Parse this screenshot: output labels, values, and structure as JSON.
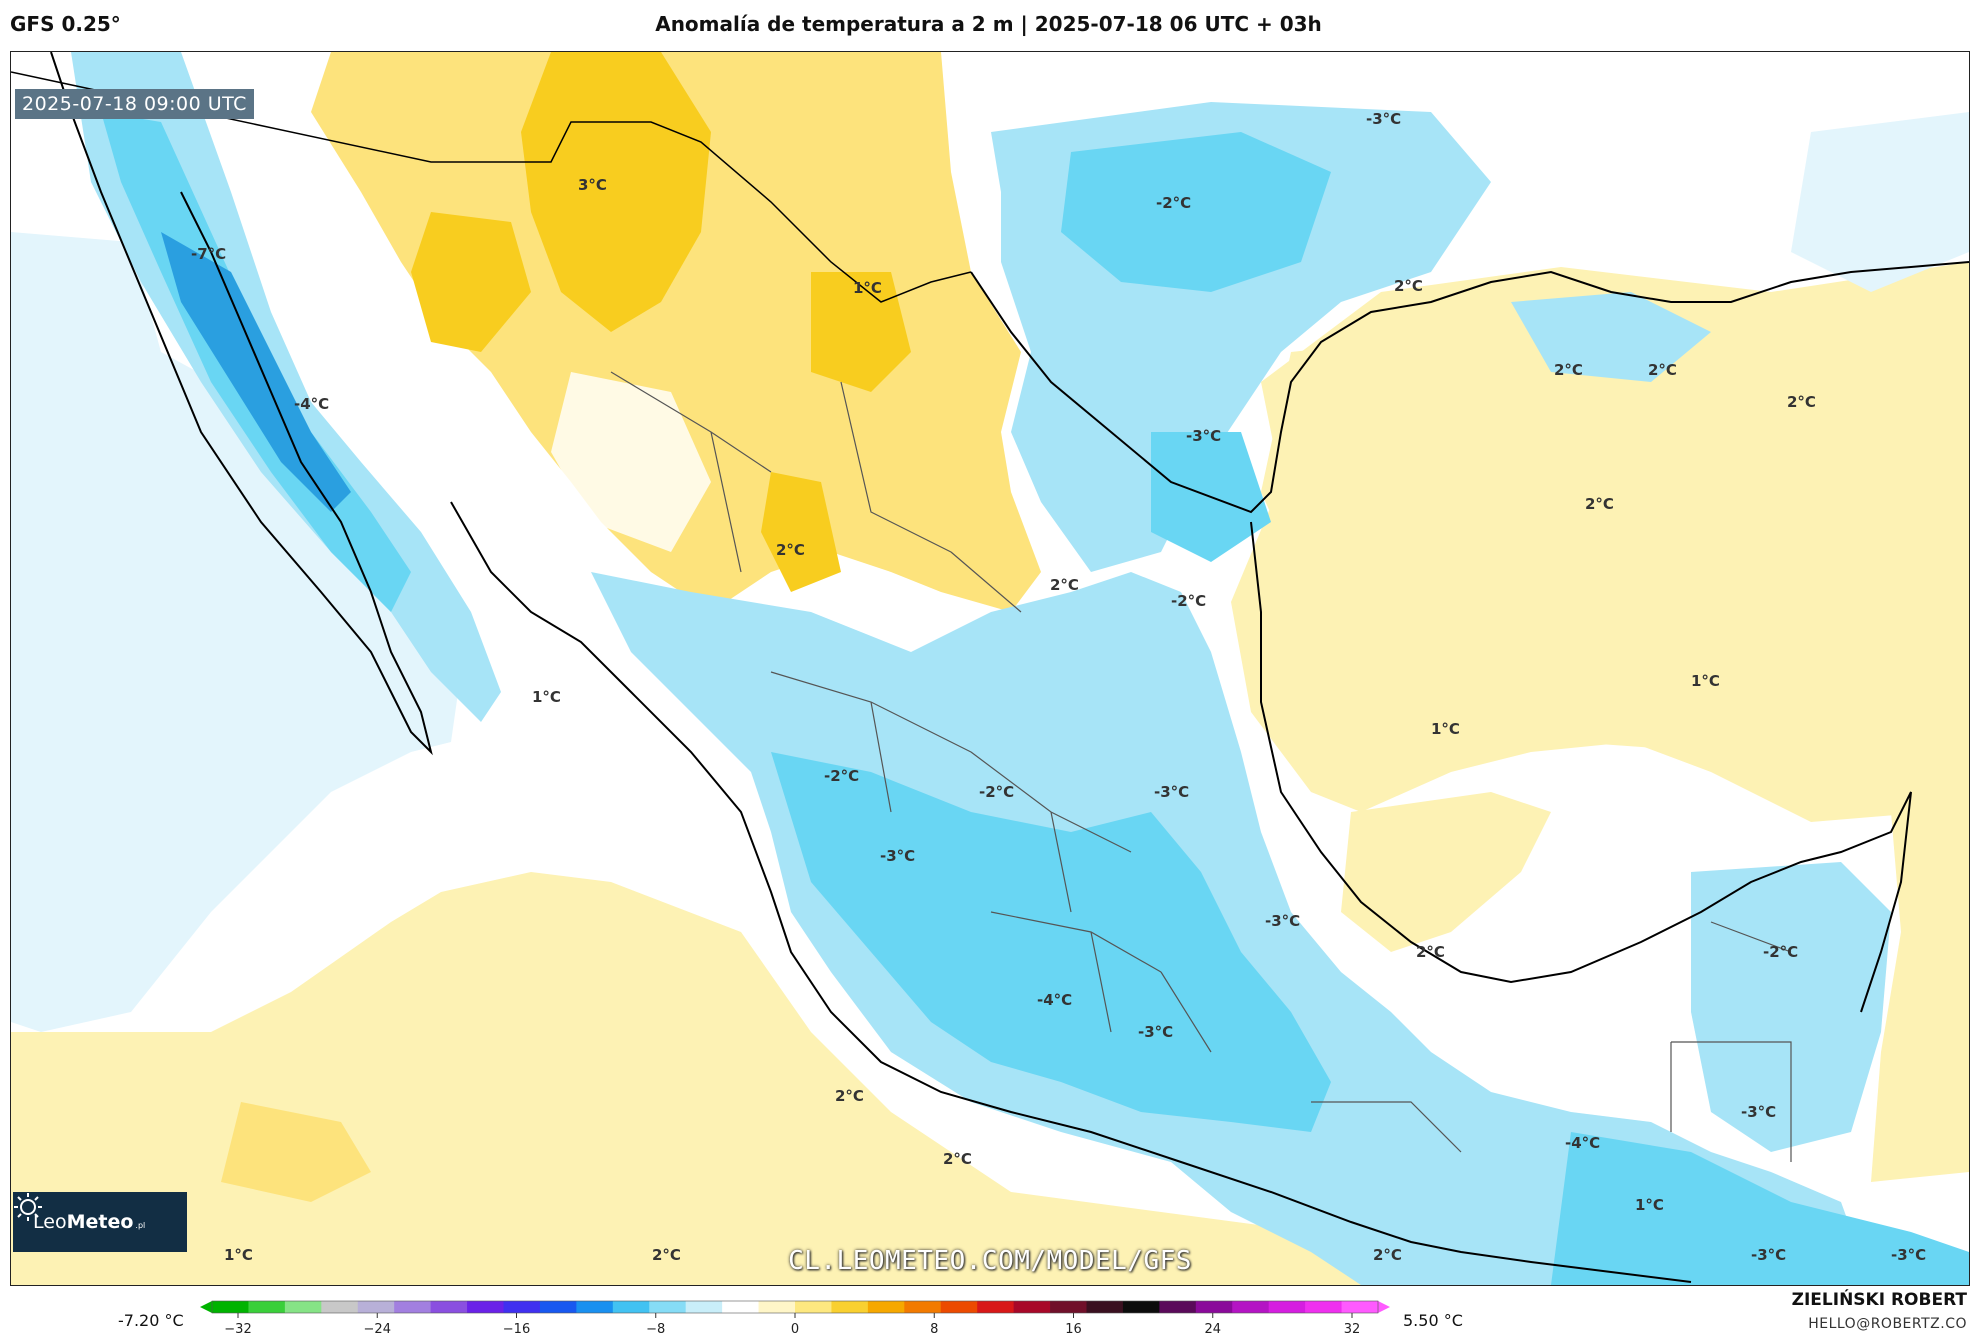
{
  "header": {
    "model": "GFS 0.25°",
    "title": "Anomalía de temperatura a 2 m | 2025-07-18 06 UTC + 03h"
  },
  "map": {
    "valid_time": "2025-07-18 09:00 UTC",
    "watermark": "CL.LEOMETEO.COM/MODEL/GFS",
    "logo": {
      "brand_light": "Leo",
      "brand_bold": "Meteo",
      "tld": ".pl"
    },
    "contour_labels": [
      "3°C",
      "-3°C",
      "-2°C",
      "-7°C",
      "1°C",
      "2°C",
      "-4°C",
      "2°C",
      "2°C",
      "2°C",
      "-3°C",
      "2°C",
      "2°C",
      "2°C",
      "-2°C",
      "1°C",
      "1°C",
      "1°C",
      "-2°C",
      "-2°C",
      "-3°C",
      "-3°C",
      "-3°C",
      "2°C",
      "-2°C",
      "-4°C",
      "-3°C",
      "2°C",
      "-3°C",
      "2°C",
      "-4°C",
      "1°C",
      "1°C",
      "2°C",
      "2°C",
      "-3°C",
      "-3°C"
    ],
    "colors": {
      "ocean_warm": "#fdf2b4",
      "land_warm": "#fde37c",
      "warm_core": "#f8cd1f",
      "cool_pale": "#e3f5fc",
      "cool_mid": "#a7e4f7",
      "cool_strong": "#69d6f3",
      "cold_core": "#2a9fe0",
      "coast": "#000000",
      "borders": "#555555"
    }
  },
  "colorbar": {
    "min_label": "-7.20 °C",
    "max_label": "5.50 °C",
    "tick_labels": [
      "−32",
      "−24",
      "−16",
      "−8",
      "0",
      "8",
      "16",
      "24",
      "32"
    ],
    "colors": [
      "#00b300",
      "#3acf3a",
      "#86e386",
      "#c8c8c8",
      "#b8b0d8",
      "#a27fe0",
      "#8a4fe0",
      "#6a22e8",
      "#4030f0",
      "#1858f0",
      "#1990f0",
      "#42c2f2",
      "#86dcf6",
      "#c9eef9",
      "#ffffff",
      "#fff6c8",
      "#fde880",
      "#f9d030",
      "#f6a800",
      "#f27a00",
      "#ec4a00",
      "#d81818",
      "#a80828",
      "#70102a",
      "#3a1020",
      "#0c0c0c",
      "#5a0a5a",
      "#8a0a9a",
      "#b414c4",
      "#d51ee0",
      "#ef30ef",
      "#ff5aff"
    ]
  },
  "footer": {
    "author": "ZIELIŃSKI ROBERT",
    "email": "HELLO@ROBERTZ.CO"
  }
}
